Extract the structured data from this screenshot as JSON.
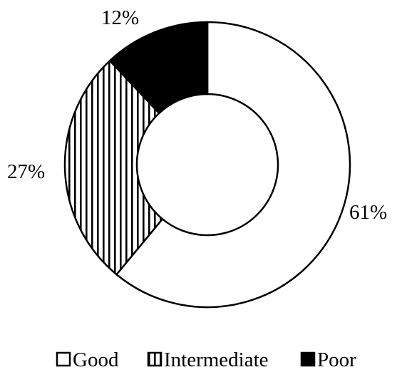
{
  "chart_data": {
    "type": "pie",
    "variant": "donut",
    "categories": [
      "Good",
      "Intermediate",
      "Poor"
    ],
    "values": [
      61,
      27,
      12
    ],
    "value_labels": [
      "61%",
      "27%",
      "12%"
    ],
    "start_angle": "12 o'clock",
    "direction": "clockwise",
    "legend_position": "bottom",
    "title": "",
    "fills": {
      "Good": "white",
      "Intermediate": "vertical-stripes",
      "Poor": "black"
    },
    "colors": {
      "stroke": "#000000",
      "fill_light": "#ffffff",
      "fill_dark": "#000000"
    }
  }
}
